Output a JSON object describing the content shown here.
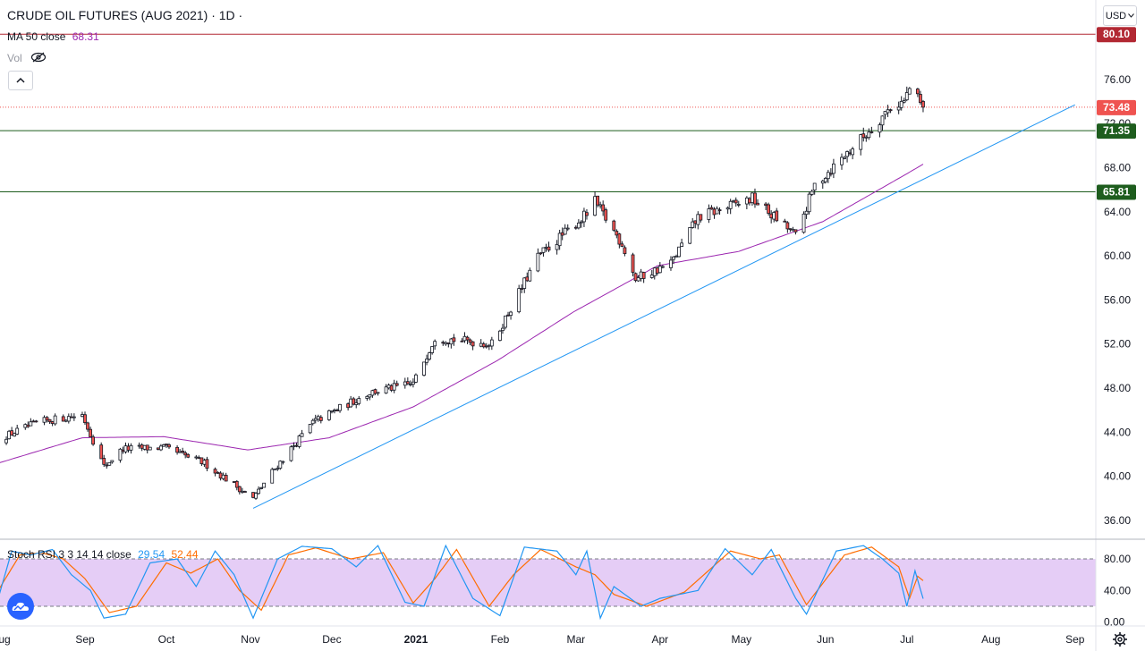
{
  "header": {
    "title": "CRUDE OIL FUTURES (AUG 2021) · 1D ·",
    "ma_label": "MA 50 close",
    "ma_value": "68.31",
    "vol_label": "Vol",
    "currency": "USD"
  },
  "colors": {
    "up": "#26a69a",
    "down": "#ef5350",
    "candle_up_body": "#ffffff",
    "candle_outline": "#131722",
    "ma": "#9c27b0",
    "trendline": "#2196f3",
    "hline_red": "#b22833",
    "hline_green": "#1e5d1e",
    "price_badge": "#ef5350",
    "rsi_k": "#2196f3",
    "rsi_d": "#ff6d00",
    "rsi_band": "#e1c4f5"
  },
  "chart_data": [
    {
      "type": "candlestick",
      "title": "CRUDE OIL FUTURES (AUG 2021)",
      "interval": "1D",
      "x_tick_labels": [
        "Aug",
        "Sep",
        "Oct",
        "Nov",
        "Dec",
        "2021",
        "Feb",
        "Mar",
        "Apr",
        "May",
        "Jun",
        "Jul",
        "Aug",
        "Sep"
      ],
      "y_tick_labels": [
        "36.00",
        "40.00",
        "44.00",
        "48.00",
        "52.00",
        "56.00",
        "60.00",
        "64.00",
        "68.00",
        "72.00",
        "76.00"
      ],
      "ylim": [
        34.3,
        83.2
      ],
      "last_price": "73.48",
      "horizontal_lines": [
        {
          "price": 80.1,
          "label": "80.10",
          "color": "red"
        },
        {
          "price": 71.35,
          "label": "71.35",
          "color": "green"
        },
        {
          "price": 65.81,
          "label": "65.81",
          "color": "green"
        }
      ],
      "trendline": {
        "from": [
          "2020-11-02",
          37.1
        ],
        "to": [
          "2021-09-01",
          73.7
        ]
      },
      "close_anchors": [
        [
          "2020-07-31",
          43.4
        ],
        [
          "2020-08-15",
          44.9
        ],
        [
          "2020-08-31",
          45.6
        ],
        [
          "2020-09-08",
          40.9
        ],
        [
          "2020-09-15",
          42.5
        ],
        [
          "2020-09-30",
          42.6
        ],
        [
          "2020-10-15",
          41.2
        ],
        [
          "2020-10-28",
          38.9
        ],
        [
          "2020-11-02",
          38.0
        ],
        [
          "2020-11-09",
          40.4
        ],
        [
          "2020-11-24",
          44.9
        ],
        [
          "2020-12-15",
          47.6
        ],
        [
          "2020-12-31",
          48.4
        ],
        [
          "2021-01-08",
          52.6
        ],
        [
          "2021-01-29",
          52.0
        ],
        [
          "2021-02-15",
          59.9
        ],
        [
          "2021-03-05",
          63.8
        ],
        [
          "2021-03-08",
          64.9
        ],
        [
          "2021-03-18",
          61.1
        ],
        [
          "2021-03-23",
          57.9
        ],
        [
          "2021-04-05",
          59.3
        ],
        [
          "2021-04-15",
          63.5
        ],
        [
          "2021-05-05",
          65.2
        ],
        [
          "2021-05-19",
          62.3
        ],
        [
          "2021-05-21",
          61.8
        ],
        [
          "2021-05-28",
          66.4
        ],
        [
          "2021-06-15",
          70.8
        ],
        [
          "2021-06-25",
          73.5
        ],
        [
          "2021-06-30",
          74.0
        ],
        [
          "2021-07-02",
          75.2
        ],
        [
          "2021-07-06",
          73.8
        ],
        [
          "2021-07-07",
          73.48
        ]
      ],
      "ma50_anchors": [
        [
          "2020-07-31",
          41.2
        ],
        [
          "2020-08-31",
          43.5
        ],
        [
          "2020-09-30",
          43.6
        ],
        [
          "2020-10-31",
          42.4
        ],
        [
          "2020-11-30",
          43.5
        ],
        [
          "2020-12-31",
          46.3
        ],
        [
          "2021-01-31",
          50.5
        ],
        [
          "2021-02-28",
          54.9
        ],
        [
          "2021-03-31",
          59.1
        ],
        [
          "2021-04-30",
          60.4
        ],
        [
          "2021-05-31",
          63.1
        ],
        [
          "2021-06-30",
          67.3
        ],
        [
          "2021-07-07",
          68.31
        ]
      ]
    },
    {
      "type": "line",
      "title": "Stoch RSI 3 3 14 14 close",
      "series": [
        {
          "name": "K",
          "last": "29.54"
        },
        {
          "name": "D",
          "last": "52.44"
        }
      ],
      "y_tick_labels": [
        "0.00",
        "40.00",
        "80.00"
      ],
      "ylim": [
        -5,
        105
      ],
      "band": [
        20,
        80
      ],
      "k_anchors": [
        [
          "2020-07-31",
          30
        ],
        [
          "2020-08-05",
          90
        ],
        [
          "2020-08-12",
          85
        ],
        [
          "2020-08-20",
          92
        ],
        [
          "2020-08-27",
          60
        ],
        [
          "2020-09-03",
          40
        ],
        [
          "2020-09-08",
          5
        ],
        [
          "2020-09-16",
          10
        ],
        [
          "2020-09-25",
          75
        ],
        [
          "2020-10-05",
          80
        ],
        [
          "2020-10-12",
          45
        ],
        [
          "2020-10-19",
          90
        ],
        [
          "2020-10-26",
          60
        ],
        [
          "2020-11-02",
          5
        ],
        [
          "2020-11-11",
          80
        ],
        [
          "2020-11-20",
          96
        ],
        [
          "2020-12-01",
          93
        ],
        [
          "2020-12-10",
          70
        ],
        [
          "2020-12-18",
          97
        ],
        [
          "2020-12-28",
          25
        ],
        [
          "2021-01-04",
          20
        ],
        [
          "2021-01-12",
          97
        ],
        [
          "2021-01-22",
          30
        ],
        [
          "2021-02-01",
          8
        ],
        [
          "2021-02-10",
          95
        ],
        [
          "2021-02-22",
          90
        ],
        [
          "2021-03-01",
          60
        ],
        [
          "2021-03-05",
          90
        ],
        [
          "2021-03-10",
          5
        ],
        [
          "2021-03-15",
          45
        ],
        [
          "2021-03-25",
          20
        ],
        [
          "2021-04-01",
          30
        ],
        [
          "2021-04-15",
          40
        ],
        [
          "2021-04-25",
          93
        ],
        [
          "2021-05-05",
          60
        ],
        [
          "2021-05-12",
          92
        ],
        [
          "2021-05-21",
          30
        ],
        [
          "2021-05-25",
          10
        ],
        [
          "2021-06-05",
          90
        ],
        [
          "2021-06-15",
          97
        ],
        [
          "2021-06-22",
          80
        ],
        [
          "2021-06-28",
          62
        ],
        [
          "2021-07-01",
          20
        ],
        [
          "2021-07-04",
          65
        ],
        [
          "2021-07-07",
          29.54
        ]
      ],
      "d_anchors": [
        [
          "2020-07-31",
          40
        ],
        [
          "2020-08-08",
          85
        ],
        [
          "2020-08-16",
          88
        ],
        [
          "2020-08-24",
          80
        ],
        [
          "2020-09-01",
          55
        ],
        [
          "2020-09-10",
          12
        ],
        [
          "2020-09-20",
          20
        ],
        [
          "2020-10-01",
          75
        ],
        [
          "2020-10-10",
          62
        ],
        [
          "2020-10-20",
          80
        ],
        [
          "2020-10-28",
          40
        ],
        [
          "2020-11-05",
          15
        ],
        [
          "2020-11-15",
          85
        ],
        [
          "2020-11-25",
          94
        ],
        [
          "2020-12-08",
          80
        ],
        [
          "2020-12-20",
          88
        ],
        [
          "2020-12-31",
          24
        ],
        [
          "2021-01-08",
          55
        ],
        [
          "2021-01-16",
          92
        ],
        [
          "2021-01-28",
          20
        ],
        [
          "2021-02-06",
          60
        ],
        [
          "2021-02-16",
          92
        ],
        [
          "2021-03-01",
          70
        ],
        [
          "2021-03-08",
          60
        ],
        [
          "2021-03-15",
          35
        ],
        [
          "2021-03-27",
          20
        ],
        [
          "2021-04-10",
          38
        ],
        [
          "2021-04-27",
          90
        ],
        [
          "2021-05-08",
          80
        ],
        [
          "2021-05-15",
          85
        ],
        [
          "2021-05-25",
          22
        ],
        [
          "2021-06-08",
          85
        ],
        [
          "2021-06-18",
          95
        ],
        [
          "2021-06-28",
          70
        ],
        [
          "2021-07-02",
          30
        ],
        [
          "2021-07-05",
          58
        ],
        [
          "2021-07-07",
          52.44
        ]
      ]
    }
  ]
}
